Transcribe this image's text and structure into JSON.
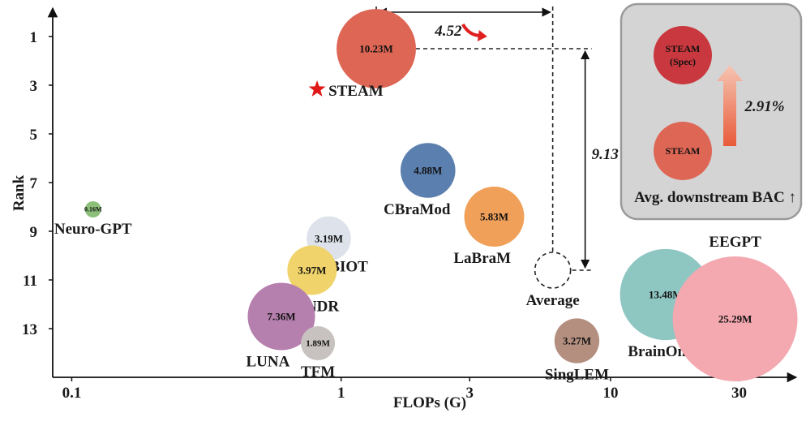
{
  "chart_data": {
    "type": "scatter",
    "xlabel": "FLOPs (G)",
    "ylabel": "Rank",
    "x_scale": "log",
    "xlim": [
      0.085,
      45
    ],
    "ylim": [
      0,
      15
    ],
    "y_inverted": true,
    "x_ticks": [
      {
        "value": 0.1,
        "label": "0.1"
      },
      {
        "value": 1,
        "label": "1"
      },
      {
        "value": 3,
        "label": "3"
      },
      {
        "value": 10,
        "label": "10"
      },
      {
        "value": 30,
        "label": "30"
      }
    ],
    "y_ticks": [
      {
        "value": 1,
        "label": "1"
      },
      {
        "value": 3,
        "label": "3"
      },
      {
        "value": 5,
        "label": "5"
      },
      {
        "value": 7,
        "label": "7"
      },
      {
        "value": 9,
        "label": "9"
      },
      {
        "value": 11,
        "label": "11"
      },
      {
        "value": 13,
        "label": "13"
      }
    ],
    "bubble_size_meaning": "parameters",
    "points": [
      {
        "name": "STEAM",
        "flops": 1.35,
        "rank": 1.5,
        "params": "10.23M",
        "params_m": 10.23,
        "color": "#de6655",
        "label_pos": "left-below",
        "star": true
      },
      {
        "name": "CBraMod",
        "flops": 2.1,
        "rank": 6.5,
        "params": "4.88M",
        "params_m": 4.88,
        "color": "#5b7fae",
        "label_pos": "below-left"
      },
      {
        "name": "LaBraM",
        "flops": 3.7,
        "rank": 8.4,
        "params": "5.83M",
        "params_m": 5.83,
        "color": "#f0a058",
        "label_pos": "below-left"
      },
      {
        "name": "Neuro-GPT",
        "flops": 0.12,
        "rank": 8.1,
        "params": "0.16M",
        "params_m": 0.16,
        "color": "#8cc07a",
        "label_pos": "below"
      },
      {
        "name": "BIOT",
        "flops": 0.9,
        "rank": 9.3,
        "params": "3.19M",
        "params_m": 3.19,
        "color": "#dde2eb",
        "label_pos": "below-right"
      },
      {
        "name": "BENDR",
        "flops": 0.78,
        "rank": 10.6,
        "params": "3.97M",
        "params_m": 3.97,
        "color": "#f0d36a",
        "label_pos": "below"
      },
      {
        "name": "LUNA",
        "flops": 0.6,
        "rank": 12.5,
        "params": "7.36M",
        "params_m": 7.36,
        "color": "#b57fae",
        "label_pos": "below-left"
      },
      {
        "name": "TFM",
        "flops": 0.82,
        "rank": 13.6,
        "params": "1.89M",
        "params_m": 1.89,
        "color": "#c7c2bf",
        "label_pos": "below"
      },
      {
        "name": "SingLEM",
        "flops": 7.5,
        "rank": 13.5,
        "params": "3.27M",
        "params_m": 3.27,
        "color": "#b48f80",
        "label_pos": "below"
      },
      {
        "name": "BrainOmni",
        "flops": 16.0,
        "rank": 11.6,
        "params": "13.48M",
        "params_m": 13.48,
        "color": "#8ec6c2",
        "label_pos": "below"
      },
      {
        "name": "EEGPT",
        "flops": 29.0,
        "rank": 12.6,
        "params": "25.29M",
        "params_m": 25.29,
        "color": "#f4a8b0",
        "label_pos": "above"
      }
    ],
    "average": {
      "name": "Average",
      "flops": 6.1,
      "rank": 10.6
    },
    "annotations": [
      {
        "text": "4.52",
        "direction": "flops-reduction"
      },
      {
        "text": "9.13",
        "direction": "rank-improvement"
      }
    ],
    "inset": {
      "top_bubble": {
        "line1": "STEAM",
        "line2": "(Spec)",
        "color": "#c9383e"
      },
      "bottom_bubble": {
        "label": "STEAM",
        "color": "#de6655"
      },
      "gain": "2.91%",
      "caption": "Avg. downstream BAC ↑"
    }
  }
}
